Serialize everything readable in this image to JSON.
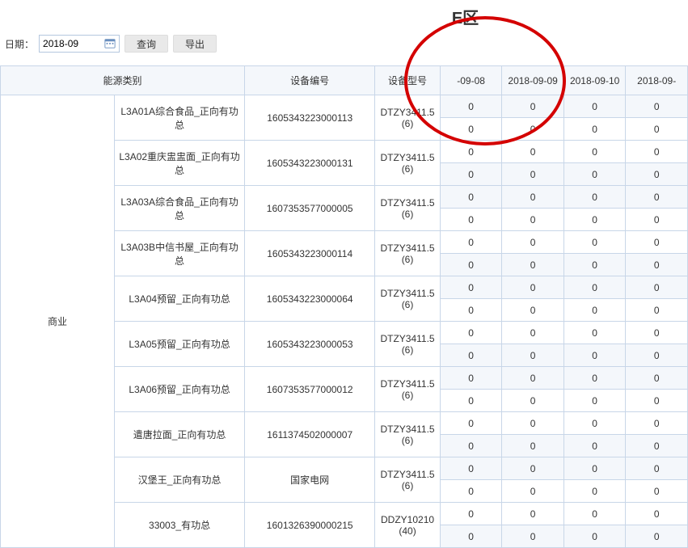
{
  "title": "E区",
  "toolbar": {
    "date_label": "日期：",
    "date_value": "2018-09",
    "query_btn": "查询",
    "export_btn": "导出"
  },
  "headers": {
    "energy_category": "能源类别",
    "device_no": "设备编号",
    "device_model": "设备型号",
    "d1": "-09-08",
    "d2": "2018-09-09",
    "d3": "2018-09-10",
    "d4": "2018-09-"
  },
  "category_label": "商业",
  "rows": [
    {
      "name": "L3A01A综合食品_正向有功总",
      "device": "1605343223000113",
      "model": "DTZY3411.5(6)",
      "v": [
        "0",
        "0",
        "0",
        "0"
      ]
    },
    {
      "name": "L3A02重庆盅盅面_正向有功总",
      "device": "1605343223000131",
      "model": "DTZY3411.5(6)",
      "v": [
        "0",
        "0",
        "0",
        "0"
      ]
    },
    {
      "name": "L3A03A综合食品_正向有功总",
      "device": "1607353577000005",
      "model": "DTZY3411.5(6)",
      "v": [
        "0",
        "0",
        "0",
        "0"
      ]
    },
    {
      "name": "L3A03B中信书屋_正向有功总",
      "device": "1605343223000114",
      "model": "DTZY3411.5(6)",
      "v": [
        "0",
        "0",
        "0",
        "0"
      ]
    },
    {
      "name": "L3A04预留_正向有功总",
      "device": "1605343223000064",
      "model": "DTZY3411.5(6)",
      "v": [
        "0",
        "0",
        "0",
        "0"
      ]
    },
    {
      "name": "L3A05预留_正向有功总",
      "device": "1605343223000053",
      "model": "DTZY3411.5(6)",
      "v": [
        "0",
        "0",
        "0",
        "0"
      ]
    },
    {
      "name": "L3A06预留_正向有功总",
      "device": "1607353577000012",
      "model": "DTZY3411.5(6)",
      "v": [
        "0",
        "0",
        "0",
        "0"
      ]
    },
    {
      "name": "遣唐拉面_正向有功总",
      "device": "1611374502000007",
      "model": "DTZY3411.5(6)",
      "v": [
        "0",
        "0",
        "0",
        "0"
      ]
    },
    {
      "name": "汉堡王_正向有功总",
      "device": "国家电网",
      "model": "DTZY3411.5(6)",
      "v": [
        "0",
        "0",
        "0",
        "0"
      ]
    },
    {
      "name": "33003_有功总",
      "device": "1601326390000215",
      "model": "DDZY10210(40)",
      "v": [
        "0",
        "0",
        "0",
        "0"
      ]
    }
  ],
  "annotation": {
    "ellipse_color": "#d40000"
  }
}
